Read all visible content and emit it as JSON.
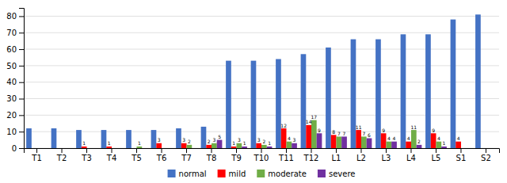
{
  "chart_data": {
    "type": "bar",
    "categories": [
      "T1",
      "T2",
      "T3",
      "T4",
      "T5",
      "T6",
      "T7",
      "T8",
      "T9",
      "T10",
      "T11",
      "T12",
      "L1",
      "L2",
      "L3",
      "L4",
      "L5",
      "S1",
      "S2"
    ],
    "series": [
      {
        "name": "normal",
        "color": "#4472C4",
        "data_labels": false,
        "values": [
          12,
          12,
          11,
          11,
          11,
          11,
          12,
          13,
          53,
          53,
          54,
          57,
          61,
          66,
          66,
          69,
          69,
          78,
          81
        ]
      },
      {
        "name": "mild",
        "color": "#FF0000",
        "data_labels": true,
        "values": [
          0,
          0,
          1,
          1,
          0,
          3,
          3,
          2,
          1,
          3,
          12,
          14,
          8,
          11,
          9,
          4,
          9,
          4,
          0
        ]
      },
      {
        "name": "moderate",
        "color": "#70AD47",
        "data_labels": true,
        "values": [
          0,
          0,
          0,
          0,
          1,
          0,
          2,
          3,
          3,
          2,
          4,
          17,
          7,
          7,
          4,
          11,
          4,
          0,
          0
        ]
      },
      {
        "name": "severe",
        "color": "#7030A0",
        "data_labels": true,
        "values": [
          0,
          0,
          0,
          0,
          0,
          0,
          0,
          5,
          1,
          1,
          3,
          9,
          7,
          6,
          4,
          2,
          1,
          0,
          0
        ]
      }
    ],
    "ylim": [
      0,
      85
    ],
    "yticks": [
      0,
      10,
      20,
      30,
      40,
      50,
      60,
      70,
      80
    ],
    "grid": true,
    "legend": "bottom"
  }
}
